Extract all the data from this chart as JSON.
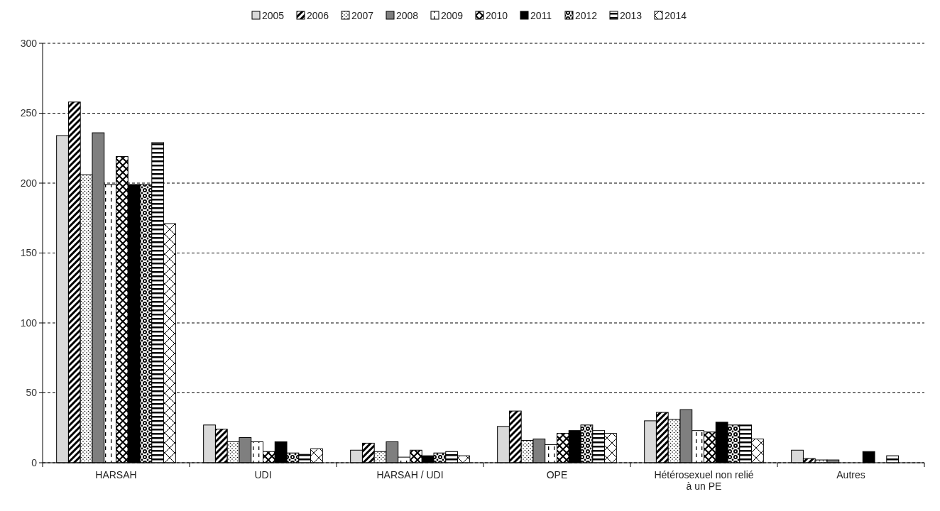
{
  "chart_data": {
    "type": "bar",
    "categories": [
      "HARSAH",
      "UDI",
      "HARSAH / UDI",
      "OPE",
      "Hétérosexuel non relié à un PE",
      "Autres"
    ],
    "series": [
      {
        "name": "2005",
        "color": "#d9d9d9",
        "values": [
          234,
          27,
          9,
          26,
          30,
          9
        ]
      },
      {
        "name": "2006",
        "color": "#000000",
        "values": [
          258,
          24,
          14,
          37,
          36,
          3
        ]
      },
      {
        "name": "2007",
        "color": "#000000",
        "values": [
          206,
          15,
          8,
          16,
          31,
          2
        ]
      },
      {
        "name": "2008",
        "color": "#7f7f7f",
        "values": [
          236,
          18,
          15,
          17,
          38,
          2
        ]
      },
      {
        "name": "2009",
        "color": "#000000",
        "values": [
          199,
          15,
          4,
          13,
          23,
          0
        ]
      },
      {
        "name": "2010",
        "color": "#000000",
        "values": [
          219,
          8,
          9,
          21,
          22,
          0
        ]
      },
      {
        "name": "2011",
        "color": "#000000",
        "values": [
          199,
          15,
          5,
          23,
          29,
          8
        ]
      },
      {
        "name": "2012",
        "color": "#000000",
        "values": [
          199,
          7,
          7,
          27,
          27,
          0
        ]
      },
      {
        "name": "2013",
        "color": "#000000",
        "values": [
          229,
          6,
          8,
          23,
          27,
          5
        ]
      },
      {
        "name": "2014",
        "color": "#000000",
        "values": [
          171,
          10,
          5,
          21,
          17,
          0
        ]
      }
    ],
    "ylim": [
      0,
      300
    ],
    "yticks": [
      0,
      50,
      100,
      150,
      200,
      250,
      300
    ],
    "grid": "y",
    "legend": "top"
  }
}
